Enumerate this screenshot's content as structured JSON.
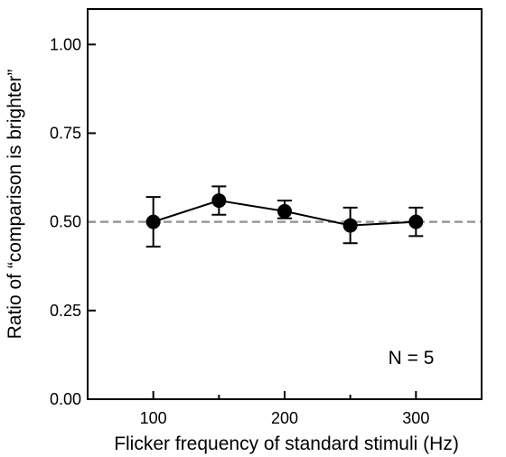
{
  "chart_data": {
    "type": "line",
    "xlabel": "Flicker frequency of standard stimuli (Hz)",
    "ylabel": "Ratio of “comparison is brighter”",
    "xlim": [
      50,
      350
    ],
    "ylim": [
      0,
      1.1
    ],
    "x_ticks": [
      100,
      200,
      300
    ],
    "x_minor_ticks": [
      150,
      250
    ],
    "y_ticks": [
      0.0,
      0.25,
      0.5,
      0.75,
      1.0
    ],
    "x_tick_labels": [
      "100",
      "200",
      "300"
    ],
    "y_tick_labels": [
      "0.00",
      "0.25",
      "0.50",
      "0.75",
      "1.00"
    ],
    "series": [
      {
        "x": [
          100,
          150,
          200,
          250,
          300
        ],
        "y": [
          0.5,
          0.56,
          0.53,
          0.49,
          0.5
        ],
        "err_low": [
          0.43,
          0.52,
          0.51,
          0.44,
          0.46
        ],
        "err_high": [
          0.57,
          0.6,
          0.56,
          0.54,
          0.54
        ],
        "color": "#000000",
        "marker": "filled-circle"
      }
    ],
    "reference_line": {
      "y": 0.5,
      "style": "dashed",
      "color": "#999999"
    },
    "annotation": "N = 5",
    "grid": false,
    "legend": "none"
  }
}
